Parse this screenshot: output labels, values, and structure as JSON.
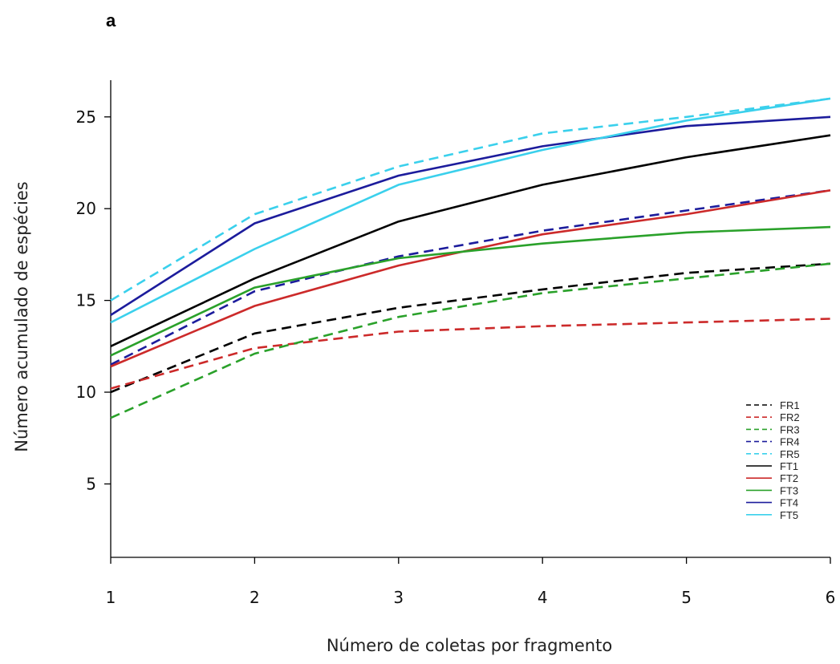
{
  "panel_label": "a",
  "chart_data": {
    "type": "line",
    "xlabel": "Número de coletas por fragmento",
    "ylabel": "Número acumulado de espécies",
    "x": [
      1,
      2,
      3,
      4,
      5,
      6
    ],
    "xlim": [
      1,
      6
    ],
    "ylim": [
      1,
      27
    ],
    "x_ticks": [
      "1",
      "2",
      "3",
      "4",
      "5",
      "6"
    ],
    "y_ticks": [
      "5",
      "10",
      "15",
      "20",
      "25"
    ],
    "grid": false,
    "legend_position": "bottom-right",
    "series": [
      {
        "name": "FR1",
        "color": "#000000",
        "dash": true,
        "values": [
          10.0,
          13.2,
          14.6,
          15.6,
          16.5,
          17.0
        ]
      },
      {
        "name": "FR2",
        "color": "#cc2a2a",
        "dash": true,
        "values": [
          10.2,
          12.4,
          13.3,
          13.6,
          13.8,
          14.0
        ]
      },
      {
        "name": "FR3",
        "color": "#2aa12a",
        "dash": true,
        "values": [
          8.6,
          12.1,
          14.1,
          15.4,
          16.2,
          17.0
        ]
      },
      {
        "name": "FR4",
        "color": "#1c1c9c",
        "dash": true,
        "values": [
          11.5,
          15.5,
          17.4,
          18.8,
          19.9,
          21.0
        ]
      },
      {
        "name": "FR5",
        "color": "#3ad0ec",
        "dash": true,
        "values": [
          15.0,
          19.7,
          22.3,
          24.1,
          25.0,
          26.0
        ]
      },
      {
        "name": "FT1",
        "color": "#000000",
        "dash": false,
        "values": [
          12.5,
          16.2,
          19.3,
          21.3,
          22.8,
          24.0
        ]
      },
      {
        "name": "FT2",
        "color": "#cc2a2a",
        "dash": false,
        "values": [
          11.4,
          14.7,
          16.9,
          18.6,
          19.7,
          21.0
        ]
      },
      {
        "name": "FT3",
        "color": "#2aa12a",
        "dash": false,
        "values": [
          12.0,
          15.7,
          17.3,
          18.1,
          18.7,
          19.0
        ]
      },
      {
        "name": "FT4",
        "color": "#1c1c9c",
        "dash": false,
        "values": [
          14.2,
          19.2,
          21.8,
          23.4,
          24.5,
          25.0
        ]
      },
      {
        "name": "FT5",
        "color": "#3ad0ec",
        "dash": false,
        "values": [
          13.8,
          17.8,
          21.3,
          23.2,
          24.8,
          26.0
        ]
      }
    ]
  }
}
